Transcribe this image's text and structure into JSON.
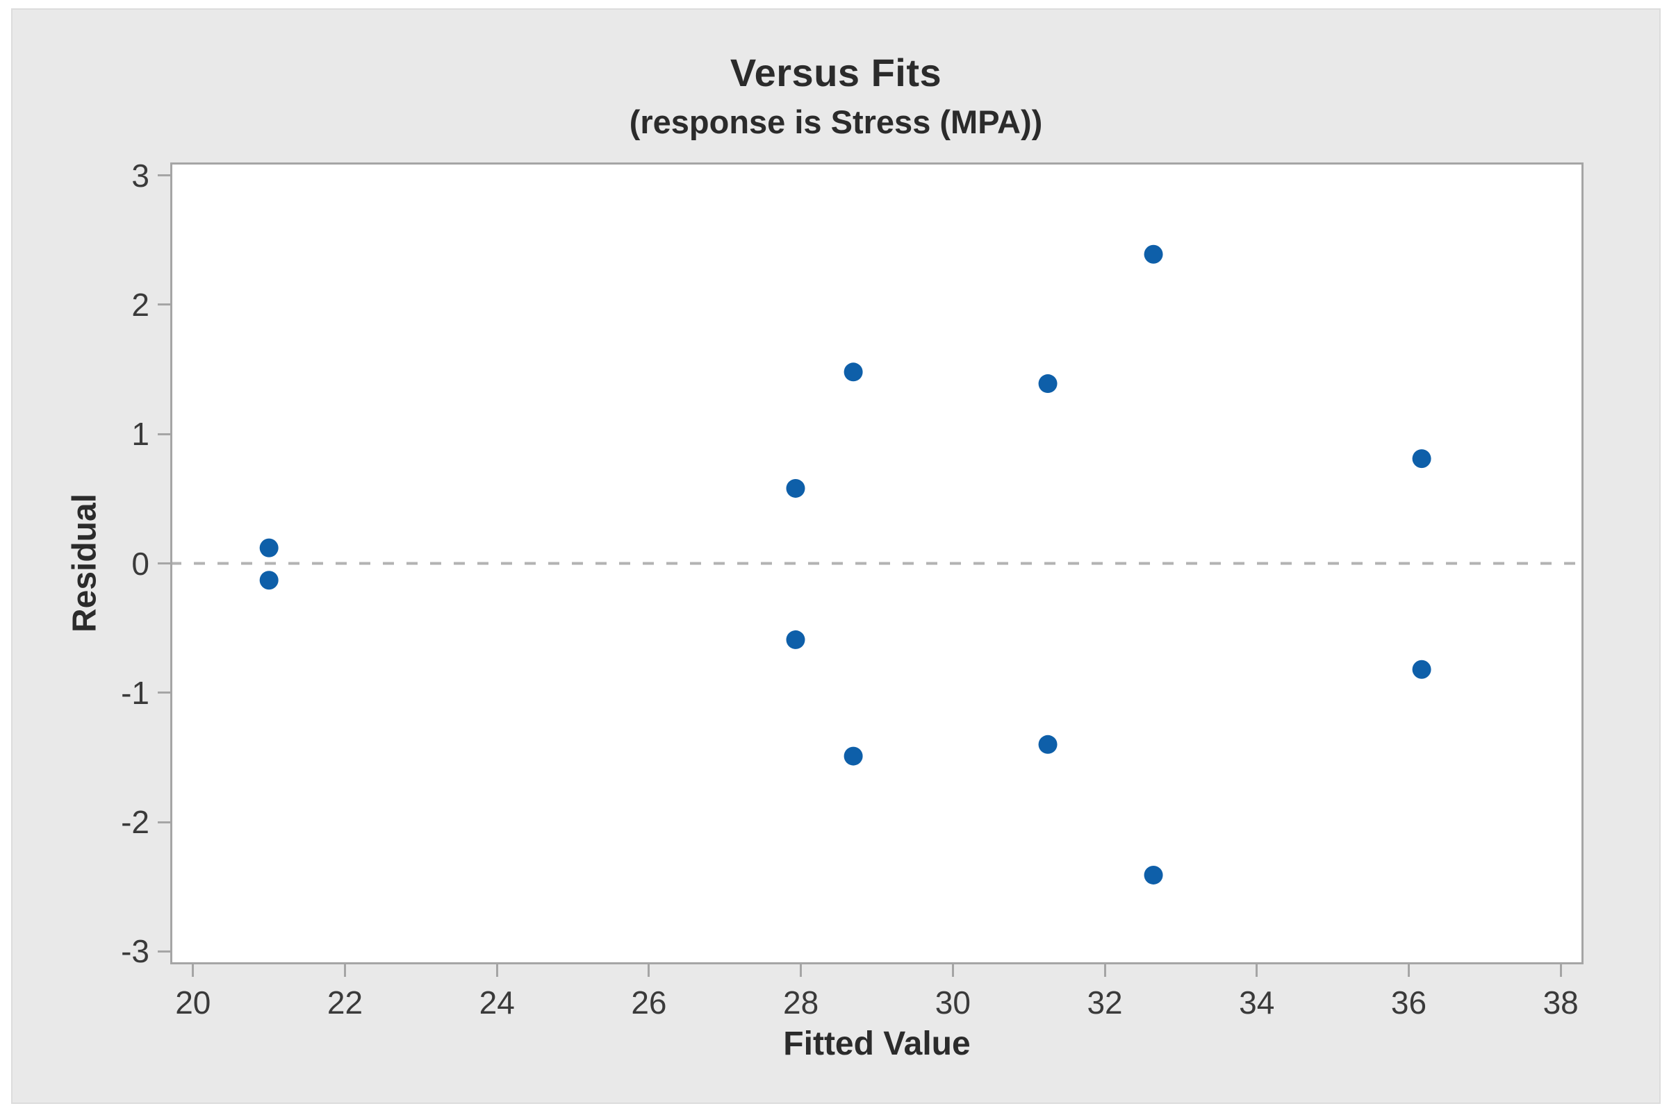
{
  "figure": {
    "title": "Versus Fits",
    "subtitle": "(response is Stress (MPA))",
    "x_axis_label": "Fitted Value",
    "y_axis_label": "Residual"
  },
  "colors": {
    "marker": "#0E5FA9",
    "reference_line": "#b3b3b3",
    "frame": "#a5a5a5",
    "panel_background": "#e9e9e9",
    "plot_background": "#ffffff",
    "text": "#2b2b2b"
  },
  "chart_data": {
    "type": "scatter",
    "title": "Versus Fits",
    "subtitle": "(response is Stress (MPA))",
    "xlabel": "Fitted Value",
    "ylabel": "Residual",
    "xlim": [
      19.7,
      38.3
    ],
    "ylim": [
      -3.1,
      3.1
    ],
    "x_ticks": [
      20,
      22,
      24,
      26,
      28,
      30,
      32,
      34,
      36,
      38
    ],
    "y_ticks": [
      3,
      2,
      1,
      0,
      -1,
      -2,
      -3
    ],
    "grid": false,
    "legend": false,
    "reference_line_y": 0,
    "marker_color": "#0E5FA9",
    "reference_line_color": "#b3b3b3",
    "marker_diameter_px": 27,
    "points": [
      {
        "x": 21.0,
        "y": 0.12
      },
      {
        "x": 21.0,
        "y": -0.13
      },
      {
        "x": 27.93,
        "y": 0.58
      },
      {
        "x": 27.93,
        "y": -0.59
      },
      {
        "x": 28.69,
        "y": 1.48
      },
      {
        "x": 28.69,
        "y": -1.49
      },
      {
        "x": 31.25,
        "y": 1.39
      },
      {
        "x": 31.25,
        "y": -1.4
      },
      {
        "x": 32.64,
        "y": 2.39
      },
      {
        "x": 32.64,
        "y": -2.41
      },
      {
        "x": 36.17,
        "y": 0.81
      },
      {
        "x": 36.17,
        "y": -0.82
      }
    ]
  }
}
